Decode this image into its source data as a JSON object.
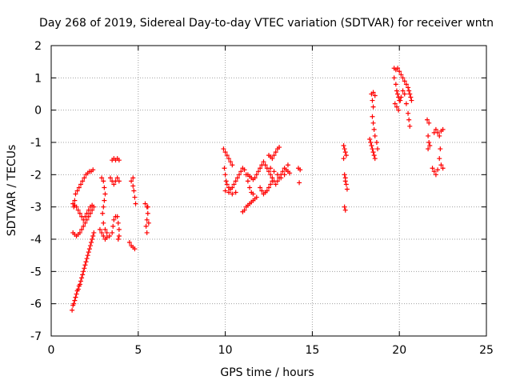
{
  "chart_data": {
    "type": "scatter",
    "title": "Day 268 of 2019, Sidereal Day-to-day VTEC variation (SDTVAR) for receiver wntn",
    "xlabel": "GPS time / hours",
    "ylabel": "SDTVAR / TECUs",
    "xlim": [
      0,
      25
    ],
    "ylim": [
      -7,
      2
    ],
    "xticks": [
      0,
      5,
      10,
      15,
      20,
      25
    ],
    "yticks": [
      -7,
      -6,
      -5,
      -4,
      -3,
      -2,
      -1,
      0,
      1,
      2
    ],
    "grid": true,
    "marker": "+",
    "color": "#ff0000",
    "points": [
      [
        1.2,
        -6.2
      ],
      [
        1.25,
        -6.05
      ],
      [
        1.3,
        -6.0
      ],
      [
        1.35,
        -5.9
      ],
      [
        1.4,
        -5.8
      ],
      [
        1.45,
        -5.7
      ],
      [
        1.5,
        -5.6
      ],
      [
        1.55,
        -5.55
      ],
      [
        1.6,
        -5.45
      ],
      [
        1.65,
        -5.4
      ],
      [
        1.7,
        -5.3
      ],
      [
        1.75,
        -5.2
      ],
      [
        1.8,
        -5.1
      ],
      [
        1.85,
        -5.0
      ],
      [
        1.9,
        -4.9
      ],
      [
        1.95,
        -4.8
      ],
      [
        2.0,
        -4.7
      ],
      [
        2.05,
        -4.6
      ],
      [
        2.1,
        -4.5
      ],
      [
        2.15,
        -4.4
      ],
      [
        2.2,
        -4.3
      ],
      [
        2.25,
        -4.2
      ],
      [
        2.3,
        -4.1
      ],
      [
        2.35,
        -4.0
      ],
      [
        2.4,
        -3.9
      ],
      [
        2.45,
        -3.8
      ],
      [
        1.25,
        -3.8
      ],
      [
        1.35,
        -3.85
      ],
      [
        1.45,
        -3.9
      ],
      [
        1.55,
        -3.85
      ],
      [
        1.65,
        -3.8
      ],
      [
        1.75,
        -3.7
      ],
      [
        1.85,
        -3.6
      ],
      [
        1.95,
        -3.5
      ],
      [
        2.05,
        -3.4
      ],
      [
        2.15,
        -3.3
      ],
      [
        2.25,
        -3.2
      ],
      [
        2.35,
        -3.1
      ],
      [
        2.45,
        -3.0
      ],
      [
        1.25,
        -2.9
      ],
      [
        1.35,
        -2.95
      ],
      [
        1.45,
        -3.0
      ],
      [
        1.55,
        -3.1
      ],
      [
        1.65,
        -3.2
      ],
      [
        1.75,
        -3.3
      ],
      [
        1.85,
        -3.4
      ],
      [
        1.95,
        -3.3
      ],
      [
        2.05,
        -3.2
      ],
      [
        2.15,
        -3.1
      ],
      [
        2.25,
        -3.0
      ],
      [
        2.35,
        -2.95
      ],
      [
        1.3,
        -3.0
      ],
      [
        1.35,
        -2.8
      ],
      [
        1.4,
        -2.6
      ],
      [
        1.5,
        -2.5
      ],
      [
        1.6,
        -2.4
      ],
      [
        1.7,
        -2.3
      ],
      [
        1.8,
        -2.2
      ],
      [
        1.9,
        -2.1
      ],
      [
        2.0,
        -2.0
      ],
      [
        2.1,
        -1.95
      ],
      [
        2.2,
        -1.9
      ],
      [
        2.3,
        -1.9
      ],
      [
        2.4,
        -1.85
      ],
      [
        2.9,
        -2.1
      ],
      [
        3.0,
        -2.2
      ],
      [
        3.05,
        -2.4
      ],
      [
        3.1,
        -2.6
      ],
      [
        3.05,
        -2.8
      ],
      [
        3.0,
        -3.0
      ],
      [
        2.95,
        -3.2
      ],
      [
        3.0,
        -3.5
      ],
      [
        3.1,
        -3.7
      ],
      [
        3.2,
        -3.8
      ],
      [
        3.35,
        -3.9
      ],
      [
        3.5,
        -3.8
      ],
      [
        3.55,
        -3.6
      ],
      [
        3.6,
        -3.4
      ],
      [
        3.7,
        -3.3
      ],
      [
        3.8,
        -3.3
      ],
      [
        3.85,
        -3.5
      ],
      [
        3.9,
        -3.7
      ],
      [
        3.9,
        -3.9
      ],
      [
        3.85,
        -4.0
      ],
      [
        2.8,
        -3.7
      ],
      [
        2.9,
        -3.8
      ],
      [
        3.0,
        -3.9
      ],
      [
        3.1,
        -4.0
      ],
      [
        3.2,
        -3.95
      ],
      [
        3.4,
        -2.1
      ],
      [
        3.5,
        -2.2
      ],
      [
        3.6,
        -2.3
      ],
      [
        3.7,
        -2.2
      ],
      [
        3.8,
        -2.1
      ],
      [
        3.9,
        -2.2
      ],
      [
        3.5,
        -1.55
      ],
      [
        3.6,
        -1.5
      ],
      [
        3.7,
        -1.55
      ],
      [
        3.8,
        -1.5
      ],
      [
        3.9,
        -1.55
      ],
      [
        4.6,
        -2.2
      ],
      [
        4.7,
        -2.35
      ],
      [
        4.75,
        -2.5
      ],
      [
        4.8,
        -2.7
      ],
      [
        4.85,
        -2.9
      ],
      [
        4.7,
        -2.1
      ],
      [
        4.5,
        -4.1
      ],
      [
        4.6,
        -4.2
      ],
      [
        4.7,
        -4.25
      ],
      [
        4.8,
        -4.3
      ],
      [
        5.4,
        -2.9
      ],
      [
        5.5,
        -3.0
      ],
      [
        5.55,
        -3.2
      ],
      [
        5.5,
        -3.4
      ],
      [
        5.45,
        -3.6
      ],
      [
        5.5,
        -3.8
      ],
      [
        5.55,
        -3.0
      ],
      [
        5.6,
        -3.5
      ],
      [
        9.9,
        -1.2
      ],
      [
        10.0,
        -1.3
      ],
      [
        10.1,
        -1.4
      ],
      [
        10.2,
        -1.5
      ],
      [
        10.3,
        -1.6
      ],
      [
        10.4,
        -1.7
      ],
      [
        9.95,
        -1.8
      ],
      [
        10.0,
        -2.0
      ],
      [
        10.05,
        -2.2
      ],
      [
        10.1,
        -2.3
      ],
      [
        10.2,
        -2.4
      ],
      [
        10.3,
        -2.45
      ],
      [
        10.4,
        -2.4
      ],
      [
        10.5,
        -2.3
      ],
      [
        10.6,
        -2.2
      ],
      [
        10.7,
        -2.1
      ],
      [
        10.8,
        -2.0
      ],
      [
        10.9,
        -1.9
      ],
      [
        11.0,
        -1.8
      ],
      [
        11.1,
        -1.85
      ],
      [
        11.2,
        -2.0
      ],
      [
        11.3,
        -2.2
      ],
      [
        11.4,
        -2.4
      ],
      [
        11.5,
        -2.55
      ],
      [
        11.6,
        -2.6
      ],
      [
        10.0,
        -2.5
      ],
      [
        10.2,
        -2.55
      ],
      [
        10.4,
        -2.6
      ],
      [
        10.6,
        -2.55
      ],
      [
        11.0,
        -3.15
      ],
      [
        11.1,
        -3.1
      ],
      [
        11.2,
        -3.0
      ],
      [
        11.3,
        -2.95
      ],
      [
        11.4,
        -2.9
      ],
      [
        11.5,
        -2.85
      ],
      [
        11.6,
        -2.8
      ],
      [
        11.7,
        -2.75
      ],
      [
        11.8,
        -2.7
      ],
      [
        11.3,
        -2.0
      ],
      [
        11.4,
        -2.05
      ],
      [
        11.5,
        -2.1
      ],
      [
        11.6,
        -2.15
      ],
      [
        11.7,
        -2.1
      ],
      [
        11.8,
        -2.0
      ],
      [
        11.9,
        -1.9
      ],
      [
        12.0,
        -1.8
      ],
      [
        12.1,
        -1.7
      ],
      [
        12.2,
        -1.6
      ],
      [
        12.3,
        -1.7
      ],
      [
        12.4,
        -1.8
      ],
      [
        12.5,
        -1.9
      ],
      [
        12.6,
        -2.0
      ],
      [
        12.7,
        -2.1
      ],
      [
        12.8,
        -2.2
      ],
      [
        12.9,
        -2.3
      ],
      [
        13.0,
        -2.2
      ],
      [
        13.1,
        -2.1
      ],
      [
        13.2,
        -2.0
      ],
      [
        13.3,
        -1.9
      ],
      [
        13.4,
        -1.8
      ],
      [
        13.5,
        -1.85
      ],
      [
        13.6,
        -1.9
      ],
      [
        13.7,
        -1.95
      ],
      [
        12.0,
        -2.4
      ],
      [
        12.1,
        -2.5
      ],
      [
        12.2,
        -2.6
      ],
      [
        12.3,
        -2.55
      ],
      [
        12.4,
        -2.5
      ],
      [
        12.5,
        -2.4
      ],
      [
        12.6,
        -2.3
      ],
      [
        12.7,
        -2.2
      ],
      [
        12.5,
        -1.4
      ],
      [
        12.6,
        -1.45
      ],
      [
        12.7,
        -1.5
      ],
      [
        12.8,
        -1.4
      ],
      [
        12.9,
        -1.3
      ],
      [
        13.0,
        -1.2
      ],
      [
        13.1,
        -1.15
      ],
      [
        12.6,
        -1.8
      ],
      [
        12.8,
        -1.9
      ],
      [
        13.0,
        -2.0
      ],
      [
        13.2,
        -2.1
      ],
      [
        13.4,
        -2.0
      ],
      [
        13.6,
        -1.7
      ],
      [
        14.2,
        -1.8
      ],
      [
        14.3,
        -1.85
      ],
      [
        14.25,
        -2.25
      ],
      [
        16.8,
        -1.1
      ],
      [
        16.85,
        -1.2
      ],
      [
        16.9,
        -1.3
      ],
      [
        16.95,
        -1.4
      ],
      [
        16.8,
        -1.5
      ],
      [
        16.85,
        -2.0
      ],
      [
        16.9,
        -2.1
      ],
      [
        16.95,
        -2.3
      ],
      [
        17.0,
        -2.45
      ],
      [
        16.9,
        -2.2
      ],
      [
        16.85,
        -3.0
      ],
      [
        16.9,
        -3.1
      ],
      [
        18.3,
        -0.9
      ],
      [
        18.35,
        -1.0
      ],
      [
        18.4,
        -1.1
      ],
      [
        18.45,
        -1.2
      ],
      [
        18.5,
        -1.3
      ],
      [
        18.55,
        -1.4
      ],
      [
        18.6,
        -1.5
      ],
      [
        18.4,
        0.5
      ],
      [
        18.5,
        0.55
      ],
      [
        18.6,
        0.45
      ],
      [
        18.45,
        0.3
      ],
      [
        18.5,
        0.1
      ],
      [
        18.45,
        -0.2
      ],
      [
        18.5,
        -0.4
      ],
      [
        18.55,
        -0.6
      ],
      [
        18.6,
        -0.8
      ],
      [
        18.7,
        -1.0
      ],
      [
        18.75,
        -1.2
      ],
      [
        19.7,
        1.3
      ],
      [
        19.8,
        1.25
      ],
      [
        19.9,
        1.3
      ],
      [
        20.0,
        1.2
      ],
      [
        20.1,
        1.1
      ],
      [
        20.2,
        1.0
      ],
      [
        20.3,
        0.9
      ],
      [
        20.4,
        0.8
      ],
      [
        20.5,
        0.7
      ],
      [
        20.55,
        0.6
      ],
      [
        20.6,
        0.5
      ],
      [
        20.65,
        0.4
      ],
      [
        20.7,
        0.3
      ],
      [
        19.7,
        1.0
      ],
      [
        19.8,
        0.8
      ],
      [
        19.85,
        0.6
      ],
      [
        19.9,
        0.5
      ],
      [
        19.95,
        0.4
      ],
      [
        20.0,
        0.3
      ],
      [
        20.1,
        0.4
      ],
      [
        20.2,
        0.6
      ],
      [
        20.3,
        0.5
      ],
      [
        20.4,
        0.2
      ],
      [
        20.5,
        -0.1
      ],
      [
        20.55,
        -0.3
      ],
      [
        20.6,
        -0.5
      ],
      [
        19.75,
        0.2
      ],
      [
        19.85,
        0.1
      ],
      [
        19.95,
        0.0
      ],
      [
        20.05,
        0.3
      ],
      [
        21.6,
        -0.3
      ],
      [
        21.7,
        -0.4
      ],
      [
        21.65,
        -0.8
      ],
      [
        21.7,
        -1.0
      ],
      [
        21.65,
        -1.2
      ],
      [
        21.75,
        -1.1
      ],
      [
        21.9,
        -1.8
      ],
      [
        22.0,
        -1.9
      ],
      [
        22.1,
        -2.0
      ],
      [
        22.2,
        -1.85
      ],
      [
        22.0,
        -0.7
      ],
      [
        22.1,
        -0.6
      ],
      [
        22.2,
        -0.7
      ],
      [
        22.3,
        -0.8
      ],
      [
        22.4,
        -0.65
      ],
      [
        22.5,
        -0.6
      ],
      [
        22.3,
        -1.5
      ],
      [
        22.4,
        -1.7
      ],
      [
        22.5,
        -1.8
      ],
      [
        22.35,
        -1.2
      ]
    ]
  }
}
